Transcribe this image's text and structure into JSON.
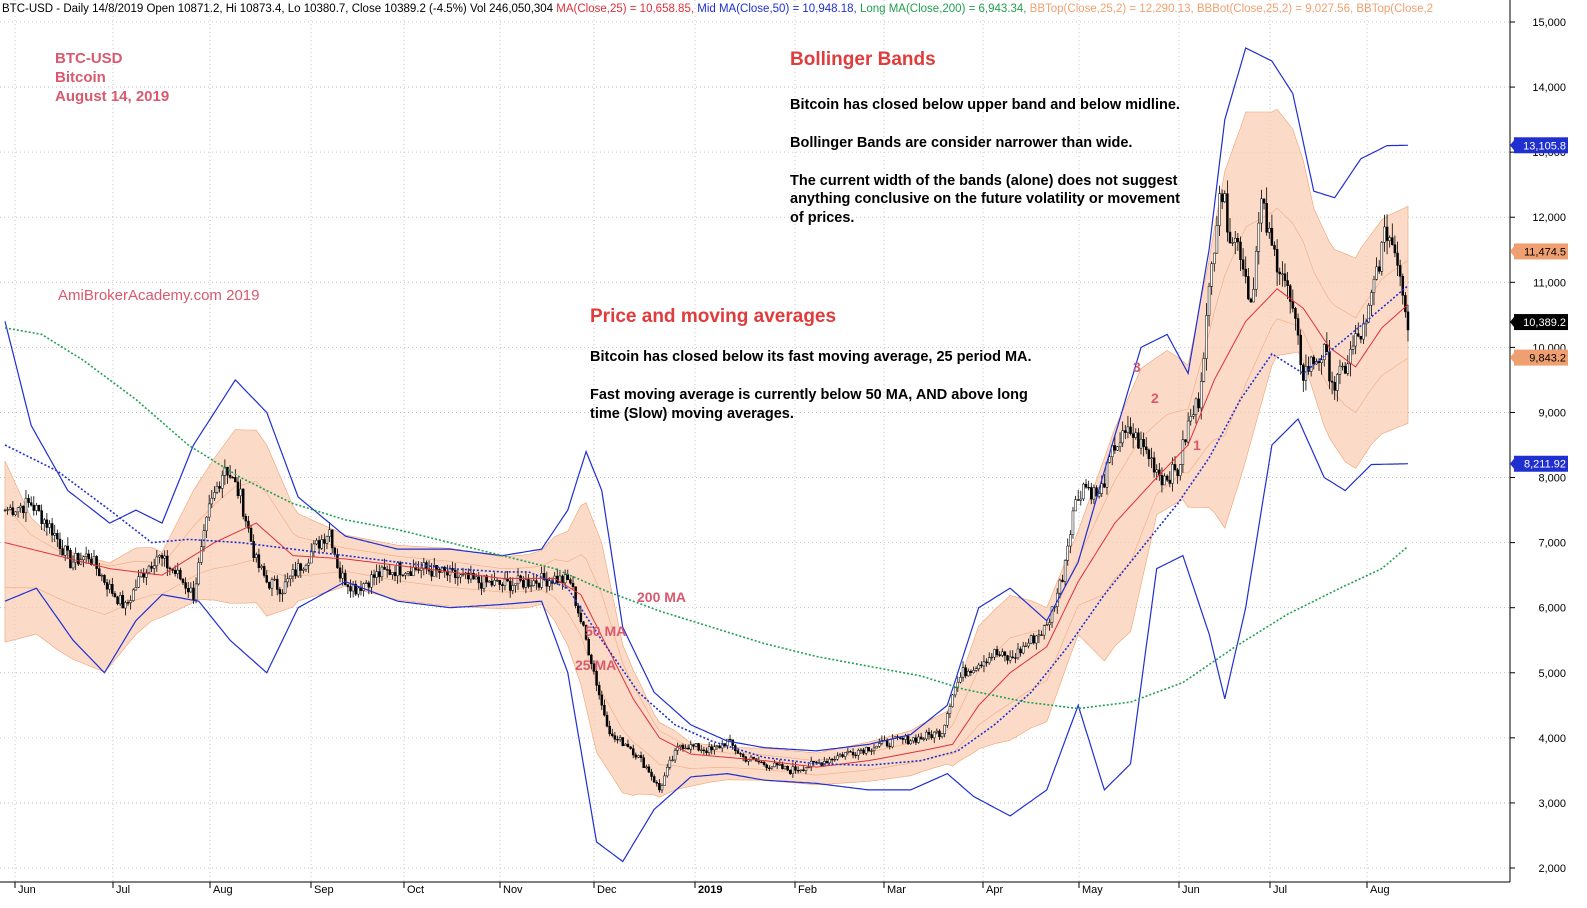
{
  "header": {
    "segments": [
      {
        "text": "BTC-USD - Daily 14/8/2019 Open 10871.2, Hi 10873.4, Lo 10380.7, Close 10389.2 (-4.5%) Vol 246,050,304 ",
        "color": "#000000"
      },
      {
        "text": "MA(Close,25) = 10,658.85, ",
        "color": "#e0303a"
      },
      {
        "text": "Mid MA(Close,50) = 10,948.18, ",
        "color": "#2030d0"
      },
      {
        "text": "Long MA(Close,200) = 6,943.34, ",
        "color": "#20a050"
      },
      {
        "text": "BBTop(Close,25,2) = 12,290.13, ",
        "color": "#f0a070"
      },
      {
        "text": "BBBot(Close,25,2) = 9,027.56, ",
        "color": "#f0a070"
      },
      {
        "text": "BBTop(Close,2",
        "color": "#f0a070"
      }
    ]
  },
  "annotations": {
    "symbol": "BTC-USD",
    "name": "Bitcoin",
    "date": "August 14, 2019",
    "watermark": "AmiBrokerAcademy.com   2019",
    "bb_title": "Bollinger Bands",
    "bb_text1": "Bitcoin has closed below upper band and below midline.",
    "bb_text2": "Bollinger Bands are consider narrower than wide.",
    "bb_text3a": "The current width of the bands (alone) does not suggest",
    "bb_text3b": "anything conclusive on the future volatility or movement",
    "bb_text3c": "of prices.",
    "pma_title": "Price and moving averages",
    "pma_text1": "Bitcoin has closed below its fast moving average, 25 period MA.",
    "pma_text2a": "Fast moving average is currently below 50 MA, AND above long",
    "pma_text2b": "time (Slow) moving averages.",
    "label_200ma": "200 MA",
    "label_50ma": "50 MA",
    "label_25ma": "25 MA",
    "wave1": "1",
    "wave2": "2",
    "wave3": "3"
  },
  "chart_data": {
    "type": "candlestick",
    "title": "BTC-USD",
    "ylim": [
      1900,
      15300
    ],
    "y_ticks": [
      2000,
      3000,
      4000,
      5000,
      6000,
      7000,
      8000,
      9000,
      10000,
      11000,
      12000,
      13000,
      14000,
      15000
    ],
    "y_tick_labels": [
      "2,000",
      "3,000",
      "4,000",
      "5,000",
      "6,000",
      "7,000",
      "8,000",
      "9,000",
      "10,000",
      "11,000",
      "12,000",
      "13,000",
      "14,000",
      "15,000"
    ],
    "x_ticks": [
      "Jun",
      "Jul",
      "Aug",
      "Sep",
      "Oct",
      "Nov",
      "Dec",
      "2019",
      "Feb",
      "Mar",
      "Apr",
      "May",
      "Jun",
      "Jul",
      "Aug"
    ],
    "value_badges": [
      {
        "label": "13,105.8",
        "value": 13105.8,
        "bg": "#2030d0",
        "fg": "#ffffff"
      },
      {
        "label": "11,474.5",
        "value": 11474.5,
        "bg": "#f0a070",
        "fg": "#000000"
      },
      {
        "label": "10,389.2",
        "value": 10389.2,
        "bg": "#000000",
        "fg": "#ffffff"
      },
      {
        "label": "9,843.2",
        "value": 9843.2,
        "bg": "#f0a070",
        "fg": "#000000"
      },
      {
        "label": "8,211.92",
        "value": 8211.92,
        "bg": "#2030d0",
        "fg": "#ffffff"
      }
    ],
    "close_keypoints": [
      [
        0,
        7500
      ],
      [
        10,
        7600
      ],
      [
        18,
        7200
      ],
      [
        25,
        6700
      ],
      [
        32,
        6800
      ],
      [
        40,
        6300
      ],
      [
        46,
        6000
      ],
      [
        52,
        6500
      ],
      [
        58,
        6800
      ],
      [
        66,
        6500
      ],
      [
        72,
        6200
      ],
      [
        78,
        7500
      ],
      [
        84,
        8200
      ],
      [
        90,
        7700
      ],
      [
        96,
        6700
      ],
      [
        100,
        6400
      ],
      [
        106,
        6300
      ],
      [
        112,
        6600
      ],
      [
        118,
        6900
      ],
      [
        124,
        7200
      ],
      [
        128,
        6500
      ],
      [
        134,
        6300
      ],
      [
        142,
        6500
      ],
      [
        150,
        6600
      ],
      [
        160,
        6600
      ],
      [
        170,
        6500
      ],
      [
        180,
        6400
      ],
      [
        190,
        6350
      ],
      [
        200,
        6400
      ],
      [
        210,
        6450
      ],
      [
        216,
        6400
      ],
      [
        220,
        5800
      ],
      [
        224,
        5200
      ],
      [
        228,
        4500
      ],
      [
        232,
        4000
      ],
      [
        238,
        3900
      ],
      [
        242,
        3700
      ],
      [
        246,
        3500
      ],
      [
        250,
        3200
      ],
      [
        254,
        3600
      ],
      [
        258,
        3900
      ],
      [
        264,
        3850
      ],
      [
        270,
        3800
      ],
      [
        276,
        3950
      ],
      [
        282,
        3700
      ],
      [
        290,
        3600
      ],
      [
        300,
        3500
      ],
      [
        310,
        3600
      ],
      [
        320,
        3750
      ],
      [
        330,
        3850
      ],
      [
        340,
        3950
      ],
      [
        350,
        4000
      ],
      [
        358,
        4100
      ],
      [
        362,
        4700
      ],
      [
        366,
        5000
      ],
      [
        372,
        5150
      ],
      [
        378,
        5300
      ],
      [
        384,
        5200
      ],
      [
        392,
        5500
      ],
      [
        398,
        5700
      ],
      [
        404,
        6500
      ],
      [
        408,
        7500
      ],
      [
        412,
        7900
      ],
      [
        418,
        7700
      ],
      [
        424,
        8500
      ],
      [
        430,
        8700
      ],
      [
        436,
        8400
      ],
      [
        442,
        8000
      ],
      [
        448,
        8100
      ],
      [
        452,
        8800
      ],
      [
        456,
        9200
      ],
      [
        460,
        10800
      ],
      [
        464,
        12500
      ],
      [
        468,
        11800
      ],
      [
        472,
        11500
      ],
      [
        476,
        10700
      ],
      [
        480,
        12200
      ],
      [
        484,
        11500
      ],
      [
        488,
        11200
      ],
      [
        492,
        10500
      ],
      [
        496,
        9600
      ],
      [
        500,
        9800
      ],
      [
        504,
        9900
      ],
      [
        508,
        9400
      ],
      [
        512,
        9700
      ],
      [
        516,
        10100
      ],
      [
        520,
        10300
      ],
      [
        524,
        11200
      ],
      [
        528,
        11800
      ],
      [
        532,
        11400
      ],
      [
        536,
        10389
      ]
    ],
    "ma25_keypoints": [
      [
        0,
        7000
      ],
      [
        20,
        6800
      ],
      [
        40,
        6600
      ],
      [
        60,
        6500
      ],
      [
        80,
        7000
      ],
      [
        96,
        7300
      ],
      [
        110,
        6800
      ],
      [
        130,
        6750
      ],
      [
        150,
        6650
      ],
      [
        170,
        6550
      ],
      [
        190,
        6450
      ],
      [
        210,
        6450
      ],
      [
        220,
        6200
      ],
      [
        230,
        5400
      ],
      [
        240,
        4600
      ],
      [
        250,
        4000
      ],
      [
        262,
        3750
      ],
      [
        276,
        3700
      ],
      [
        290,
        3650
      ],
      [
        310,
        3550
      ],
      [
        330,
        3650
      ],
      [
        350,
        3800
      ],
      [
        362,
        3900
      ],
      [
        372,
        4500
      ],
      [
        384,
        5000
      ],
      [
        398,
        5400
      ],
      [
        410,
        6400
      ],
      [
        424,
        7300
      ],
      [
        440,
        8000
      ],
      [
        452,
        8500
      ],
      [
        462,
        9500
      ],
      [
        474,
        10400
      ],
      [
        486,
        10900
      ],
      [
        496,
        10600
      ],
      [
        506,
        10000
      ],
      [
        516,
        9700
      ],
      [
        526,
        10300
      ],
      [
        536,
        10659
      ]
    ],
    "ma50_keypoints": [
      [
        0,
        8500
      ],
      [
        20,
        8100
      ],
      [
        40,
        7500
      ],
      [
        56,
        7000
      ],
      [
        70,
        7050
      ],
      [
        90,
        7000
      ],
      [
        110,
        6900
      ],
      [
        130,
        6800
      ],
      [
        150,
        6700
      ],
      [
        170,
        6600
      ],
      [
        190,
        6550
      ],
      [
        200,
        6550
      ],
      [
        215,
        6300
      ],
      [
        228,
        5500
      ],
      [
        242,
        4700
      ],
      [
        256,
        4200
      ],
      [
        270,
        3950
      ],
      [
        290,
        3700
      ],
      [
        310,
        3600
      ],
      [
        330,
        3580
      ],
      [
        350,
        3650
      ],
      [
        364,
        3800
      ],
      [
        378,
        4200
      ],
      [
        392,
        4700
      ],
      [
        406,
        5400
      ],
      [
        420,
        6200
      ],
      [
        436,
        7000
      ],
      [
        448,
        7600
      ],
      [
        460,
        8300
      ],
      [
        472,
        9200
      ],
      [
        484,
        9900
      ],
      [
        496,
        9600
      ],
      [
        508,
        10000
      ],
      [
        520,
        10400
      ],
      [
        536,
        10948
      ]
    ],
    "ma200_keypoints": [
      [
        0,
        10300
      ],
      [
        14,
        10200
      ],
      [
        30,
        9800
      ],
      [
        50,
        9200
      ],
      [
        70,
        8500
      ],
      [
        90,
        8000
      ],
      [
        110,
        7600
      ],
      [
        130,
        7350
      ],
      [
        150,
        7200
      ],
      [
        170,
        7000
      ],
      [
        190,
        6800
      ],
      [
        210,
        6600
      ],
      [
        230,
        6250
      ],
      [
        250,
        5950
      ],
      [
        270,
        5700
      ],
      [
        290,
        5450
      ],
      [
        310,
        5250
      ],
      [
        330,
        5100
      ],
      [
        350,
        4950
      ],
      [
        366,
        4750
      ],
      [
        390,
        4550
      ],
      [
        410,
        4450
      ],
      [
        430,
        4550
      ],
      [
        450,
        4850
      ],
      [
        470,
        5400
      ],
      [
        490,
        5900
      ],
      [
        510,
        6300
      ],
      [
        526,
        6600
      ],
      [
        536,
        6943
      ]
    ],
    "bb_upper_keypoints": [
      [
        0,
        10400
      ],
      [
        10,
        8800
      ],
      [
        24,
        7800
      ],
      [
        40,
        7300
      ],
      [
        50,
        7500
      ],
      [
        60,
        7300
      ],
      [
        72,
        8500
      ],
      [
        88,
        9500
      ],
      [
        100,
        9000
      ],
      [
        112,
        7700
      ],
      [
        130,
        7100
      ],
      [
        150,
        6900
      ],
      [
        170,
        6900
      ],
      [
        190,
        6800
      ],
      [
        205,
        6900
      ],
      [
        215,
        7500
      ],
      [
        222,
        8400
      ],
      [
        228,
        7800
      ],
      [
        236,
        5700
      ],
      [
        248,
        4700
      ],
      [
        262,
        4200
      ],
      [
        276,
        3950
      ],
      [
        290,
        3850
      ],
      [
        310,
        3800
      ],
      [
        330,
        3900
      ],
      [
        346,
        4050
      ],
      [
        360,
        4500
      ],
      [
        372,
        6000
      ],
      [
        384,
        6300
      ],
      [
        398,
        5800
      ],
      [
        410,
        6700
      ],
      [
        420,
        8100
      ],
      [
        434,
        10000
      ],
      [
        444,
        10200
      ],
      [
        452,
        9600
      ],
      [
        460,
        11500
      ],
      [
        466,
        13500
      ],
      [
        474,
        14600
      ],
      [
        484,
        14400
      ],
      [
        492,
        13900
      ],
      [
        500,
        12400
      ],
      [
        508,
        12300
      ],
      [
        518,
        12900
      ],
      [
        528,
        13100
      ],
      [
        536,
        13106
      ]
    ],
    "bb_lower_keypoints": [
      [
        0,
        6100
      ],
      [
        12,
        6300
      ],
      [
        26,
        5500
      ],
      [
        38,
        5000
      ],
      [
        50,
        5800
      ],
      [
        60,
        6200
      ],
      [
        74,
        6100
      ],
      [
        86,
        5500
      ],
      [
        100,
        5000
      ],
      [
        112,
        6000
      ],
      [
        130,
        6400
      ],
      [
        150,
        6100
      ],
      [
        170,
        6000
      ],
      [
        190,
        6050
      ],
      [
        205,
        6100
      ],
      [
        215,
        5000
      ],
      [
        226,
        2400
      ],
      [
        236,
        2100
      ],
      [
        248,
        2900
      ],
      [
        262,
        3400
      ],
      [
        276,
        3450
      ],
      [
        290,
        3350
      ],
      [
        310,
        3300
      ],
      [
        330,
        3200
      ],
      [
        346,
        3200
      ],
      [
        360,
        3450
      ],
      [
        370,
        3100
      ],
      [
        384,
        2800
      ],
      [
        398,
        3200
      ],
      [
        410,
        4500
      ],
      [
        420,
        3200
      ],
      [
        430,
        3600
      ],
      [
        440,
        6600
      ],
      [
        450,
        6800
      ],
      [
        460,
        5600
      ],
      [
        466,
        4600
      ],
      [
        474,
        6000
      ],
      [
        484,
        8500
      ],
      [
        494,
        8900
      ],
      [
        504,
        8000
      ],
      [
        512,
        7800
      ],
      [
        522,
        8200
      ],
      [
        536,
        8212
      ]
    ],
    "legend": "none",
    "grid": true
  }
}
